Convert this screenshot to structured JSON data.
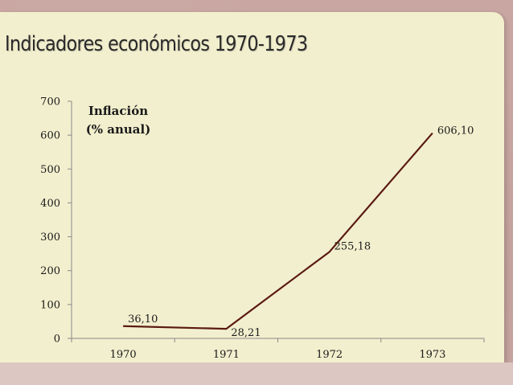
{
  "slide": {
    "title": "Indicadores económicos 1970-1973"
  },
  "chart_data": {
    "type": "line",
    "title": "",
    "xlabel": "",
    "ylabel_lines": [
      "Inflación",
      "(% anual)"
    ],
    "categories": [
      "1970",
      "1971",
      "1972",
      "1973"
    ],
    "series": [
      {
        "values": [
          36.1,
          28.21,
          255.18,
          606.1
        ],
        "labels": [
          "36,10",
          "28,21",
          "255,18",
          "606,10"
        ],
        "color": "#5a1a10"
      }
    ],
    "ylim": [
      0,
      700
    ],
    "yticks": [
      0,
      100,
      200,
      300,
      400,
      500,
      600,
      700
    ],
    "grid": false,
    "legend": "none"
  }
}
